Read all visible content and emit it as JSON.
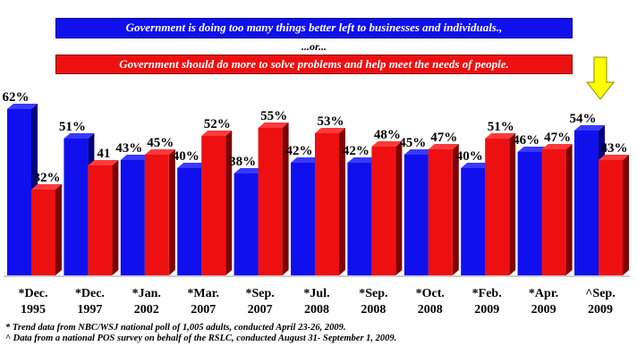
{
  "legend": {
    "blue_text": "Government is doing too many things better left to businesses and individuals.,",
    "or_text": "...or...",
    "red_text": "Government should do more to solve problems and help meet the needs of people."
  },
  "chart_data": {
    "type": "bar",
    "categories": [
      [
        "*Dec.",
        "1995"
      ],
      [
        "*Dec.",
        "1997"
      ],
      [
        "*Jan.",
        "2002"
      ],
      [
        "*Mar.",
        "2007"
      ],
      [
        "*Sep.",
        "2007"
      ],
      [
        "*Jul.",
        "2008"
      ],
      [
        "*Sep.",
        "2008"
      ],
      [
        "*Oct.",
        "2008"
      ],
      [
        "*Feb.",
        "2009"
      ],
      [
        "*Apr.",
        "2009"
      ],
      [
        "^Sep.",
        "2009"
      ]
    ],
    "series": [
      {
        "values": [
          62,
          51,
          43,
          40,
          38,
          42,
          42,
          45,
          40,
          46,
          54
        ],
        "labels": [
          "62%",
          "51%",
          "43%",
          "40%",
          "38%",
          "42%",
          "42%",
          "45%",
          "40%",
          "46%",
          "54%"
        ],
        "color": "#1010ee",
        "side_color": "#000080",
        "top_color": "#3a3aff"
      },
      {
        "values": [
          32,
          41,
          45,
          52,
          55,
          53,
          48,
          47,
          51,
          47,
          43
        ],
        "labels": [
          "32%",
          "41",
          "45%",
          "52%",
          "55%",
          "53%",
          "48%",
          "47%",
          "51%",
          "47%",
          "43%"
        ],
        "color": "#ee1010",
        "side_color": "#800000",
        "top_color": "#ff3a3a"
      }
    ],
    "highlight_arrow": {
      "category_index": 10,
      "color": "#ffff00"
    },
    "3d": true
  },
  "footnotes": [
    "* Trend data from NBC/WSJ national poll of 1,005 adults, conducted April 23-26, 2009.",
    "^ Data from a national POS survey on behalf of the RSLC, conducted August 31- September 1, 2009."
  ]
}
